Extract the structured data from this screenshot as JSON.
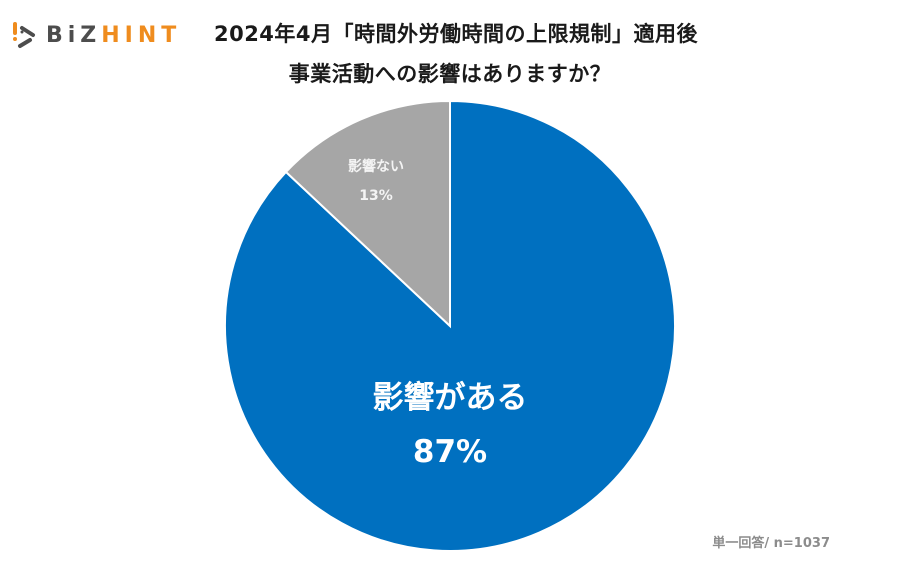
{
  "header": {
    "logo": {
      "part1": "BiZ",
      "part2": "HINT",
      "icon": "bizhint-logo-icon"
    },
    "title_line1": "2024年4月「時間外労働時間の上限規制」適用後",
    "title_line2": "事業活動への影響はありますか？"
  },
  "colors": {
    "affected": "#0070C0",
    "not_affected": "#A6A6A6",
    "logo_gray": "#4D4D4D",
    "logo_orange": "#EF8C1E"
  },
  "slices": [
    {
      "label": "影響がある",
      "value_label": "87%"
    },
    {
      "label": "影響ない",
      "value_label": "13%"
    }
  ],
  "footnote": "単一回答/ n=1037",
  "chart_data": {
    "type": "pie",
    "title": "2024年4月「時間外労働時間の上限規制」適用後 事業活動への影響はありますか？",
    "categories": [
      "影響がある",
      "影響ない"
    ],
    "values": [
      87,
      13
    ],
    "unit": "%",
    "colors": [
      "#0070C0",
      "#A6A6A6"
    ],
    "start_angle": "12 o'clock, clockwise",
    "note": "単一回答/ n=1037",
    "legend": "none (labels inside slices)"
  }
}
